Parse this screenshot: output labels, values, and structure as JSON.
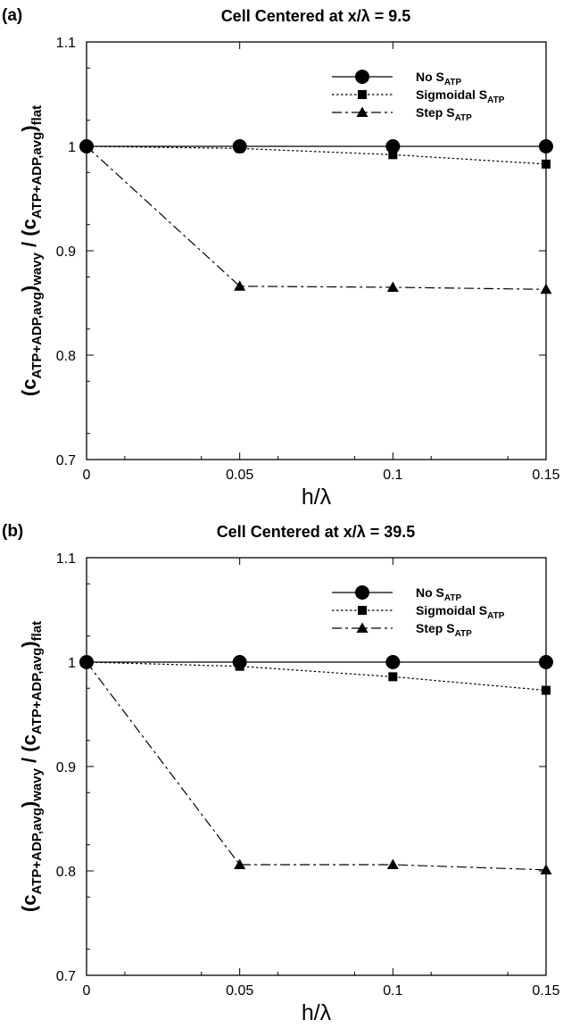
{
  "chart_data": [
    {
      "type": "line",
      "panel_label": "(a)",
      "title": "Cell Centered at x/λ = 9.5",
      "xlabel": "h/λ",
      "ylabel": {
        "base": "(c",
        "sub1": "ATP+ADP,avg",
        "mid": ")",
        "sub2": "wavy",
        "slash": " / (c",
        "sub3": "ATP+ADP,avg",
        "end": ")",
        "sub4": "flat"
      },
      "x": [
        0,
        0.05,
        0.1,
        0.15
      ],
      "x_ticks": [
        "0",
        "0.05",
        "0.1",
        "0.15"
      ],
      "y_ticks": [
        "0.7",
        "0.8",
        "0.9",
        "1",
        "1.1"
      ],
      "xlim": [
        0,
        0.15
      ],
      "ylim": [
        0.7,
        1.1
      ],
      "legend_position": "top-right",
      "series": [
        {
          "name": "No S",
          "sub": "ATP",
          "marker": "circle",
          "line": "solid",
          "values": [
            1.0,
            1.0,
            1.0,
            1.0
          ]
        },
        {
          "name": "Sigmoidal S",
          "sub": "ATP",
          "marker": "square",
          "line": "dotted",
          "values": [
            1.0,
            0.998,
            0.992,
            0.983
          ]
        },
        {
          "name": "Step S",
          "sub": "ATP",
          "marker": "triangle",
          "line": "dashdot",
          "values": [
            1.0,
            0.866,
            0.865,
            0.863
          ]
        }
      ]
    },
    {
      "type": "line",
      "panel_label": "(b)",
      "title": "Cell Centered at x/λ = 39.5",
      "xlabel": "h/λ",
      "ylabel": {
        "base": "(c",
        "sub1": "ATP+ADP,avg",
        "mid": ")",
        "sub2": "wavy",
        "slash": " / (c",
        "sub3": "ATP+ADP,avg",
        "end": ")",
        "sub4": "flat"
      },
      "x": [
        0,
        0.05,
        0.1,
        0.15
      ],
      "x_ticks": [
        "0",
        "0.05",
        "0.1",
        "0.15"
      ],
      "y_ticks": [
        "0.7",
        "0.8",
        "0.9",
        "1",
        "1.1"
      ],
      "xlim": [
        0,
        0.15
      ],
      "ylim": [
        0.7,
        1.1
      ],
      "legend_position": "top-right",
      "series": [
        {
          "name": "No S",
          "sub": "ATP",
          "marker": "circle",
          "line": "solid",
          "values": [
            1.0,
            1.0,
            1.0,
            1.0
          ]
        },
        {
          "name": "Sigmoidal S",
          "sub": "ATP",
          "marker": "square",
          "line": "dotted",
          "values": [
            1.0,
            0.996,
            0.986,
            0.973
          ]
        },
        {
          "name": "Step S",
          "sub": "ATP",
          "marker": "triangle",
          "line": "dashdot",
          "values": [
            1.0,
            0.806,
            0.806,
            0.801
          ]
        }
      ]
    }
  ]
}
